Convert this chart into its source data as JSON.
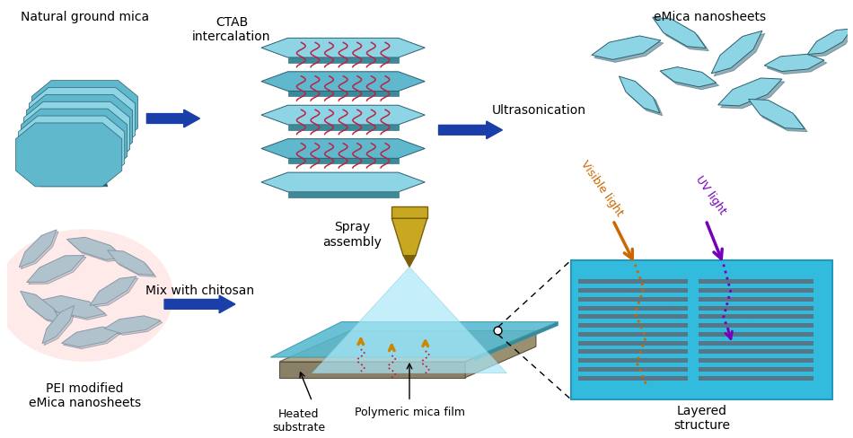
{
  "bg_color": "#ffffff",
  "mica_top": "#5fb8cb",
  "mica_light": "#8dd4e4",
  "mica_side": "#3a8a9a",
  "mica_dark": "#2a6070",
  "mica_edge_dark": "#336677",
  "arrow_color": "#1a3fa8",
  "label_natural": "Natural ground mica",
  "label_ctab": "CTAB\nintercalation",
  "label_ultra": "Ultrasonication",
  "label_emica": "eMica nanosheets",
  "label_pei": "PEI modified\neMica nanosheets",
  "label_mix": "Mix with chitosan",
  "label_spray": "Spray\nassembly",
  "label_heated": "Heated\nsubstrate",
  "label_polymeric": "Polymeric mica film",
  "label_layered": "Layered\nstructure",
  "label_visible": "Visible light",
  "label_uv": "UV light",
  "visible_color": "#cc6600",
  "uv_color": "#7700bb",
  "ctab_color": "#bb2244",
  "layered_bg": "#33bbdd",
  "layered_stripe": "#557788",
  "gray_mica": "#889aaa",
  "gray_mica_light": "#b0c2cc",
  "gold_hi": "#c8a820",
  "gold_lo": "#7a6008",
  "spray_beam": "#aae8f8",
  "substrate_top": "#b0a888",
  "substrate_front": "#8a8068",
  "substrate_side": "#9a9070",
  "film_color": "#55b8d0"
}
